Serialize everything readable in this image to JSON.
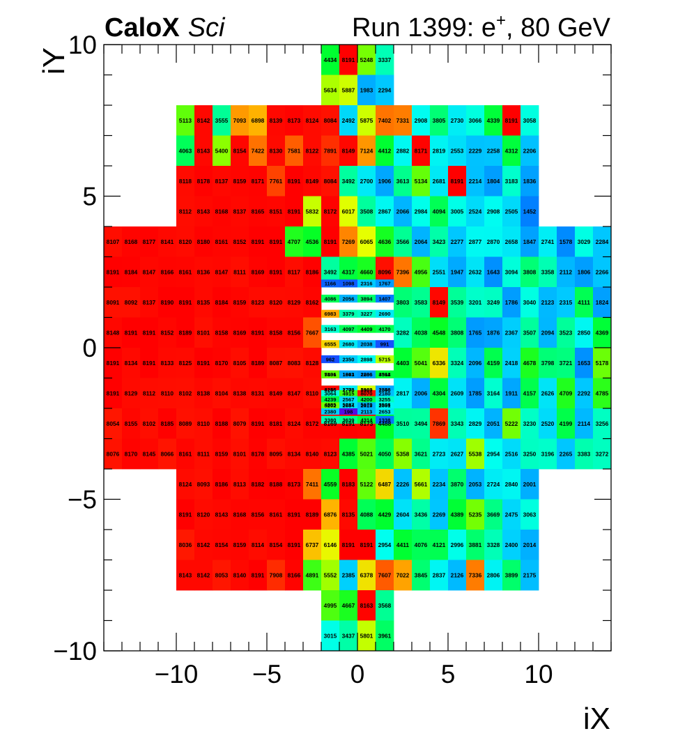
{
  "header": {
    "brand": "CaloX",
    "subbrand": "Sci",
    "run_text": "Run 1399: e",
    "run_sup": "+",
    "run_tail": ", 80 GeV"
  },
  "chart_data": {
    "type": "heatmap",
    "xlabel": "iX",
    "ylabel": "iY",
    "xlim": [
      -14,
      14
    ],
    "ylim": [
      -10,
      10
    ],
    "xticks": [
      -10,
      -5,
      0,
      5,
      10
    ],
    "yticks": [
      -10,
      -5,
      0,
      5,
      10
    ],
    "xtick_labels": [
      "−10",
      "−5",
      "0",
      "5",
      "10"
    ],
    "ytick_labels": [
      "−10",
      "−5",
      "0",
      "5",
      "10"
    ],
    "colormap": "rainbow",
    "zmax": 8191,
    "grid": false,
    "legend": "none",
    "rows": [
      {
        "y": 9.5,
        "x0": -2,
        "values": [
          4434,
          8191,
          5248,
          3337
        ]
      },
      {
        "y": 8.5,
        "x0": -2,
        "values": [
          5634,
          5887,
          1983,
          2294
        ]
      },
      {
        "y": 7.5,
        "x0": -10,
        "values": [
          5113,
          8142,
          3555,
          7093,
          6898,
          8139,
          8173,
          8124,
          8084,
          2492,
          5875,
          7402,
          7331,
          2908,
          3805,
          2730,
          3066,
          4339,
          8191,
          3058
        ]
      },
      {
        "y": 6.5,
        "x0": -10,
        "values": [
          4063,
          8143,
          5400,
          8154,
          7422,
          8130,
          7581,
          8122,
          7891,
          8149,
          7124,
          4412,
          2882,
          8171,
          2819,
          2553,
          2229,
          2258,
          4312,
          2206
        ]
      },
      {
        "y": 5.5,
        "x0": -10,
        "values": [
          8118,
          8178,
          8137,
          8159,
          8171,
          7761,
          8191,
          8149,
          8084,
          3492,
          2700,
          1906,
          3613,
          5134,
          2681,
          8191,
          2214,
          1804,
          3183,
          1836
        ]
      },
      {
        "y": 4.5,
        "x0": -10,
        "values": [
          8112,
          8143,
          8168,
          8137,
          8165,
          8151,
          8191,
          5832,
          8172,
          6017,
          3508,
          2867,
          2066,
          2984,
          4094,
          3005,
          2524,
          2908,
          2505,
          1452
        ]
      },
      {
        "y": 3.5,
        "x0": -14,
        "values": [
          8107,
          8168,
          8177,
          8141,
          8120,
          8180,
          8161,
          8152,
          8191,
          8191,
          4707,
          4536,
          8191,
          7269,
          6065,
          4636,
          3566,
          2064,
          3423,
          2277,
          2877,
          2870,
          2658,
          1847,
          2741,
          1578,
          3029,
          2284
        ]
      },
      {
        "y": 2.5,
        "x0": -14,
        "values": [
          8191,
          8184,
          8147,
          8166,
          8161,
          8136,
          8147,
          8111,
          8169,
          8191,
          8117,
          8186,
          3492,
          4317,
          4660,
          8096,
          7396,
          4956,
          2551,
          1947,
          2632,
          1643,
          3094,
          3808,
          3358,
          2112,
          1806,
          2266
        ]
      },
      {
        "y": 1.5,
        "x0": -14,
        "values": [
          8091,
          8092,
          8137,
          8190,
          8191,
          8135,
          8184,
          8159,
          8123,
          8120,
          8129,
          8162,
          null,
          null,
          null,
          null,
          3803,
          3583,
          8149,
          3539,
          3201,
          3249,
          1786,
          3040,
          2123,
          2315,
          4111,
          1824
        ]
      },
      {
        "y": 0.5,
        "x0": -14,
        "values": [
          8148,
          8191,
          8191,
          8152,
          8189,
          8101,
          8158,
          8169,
          8191,
          8158,
          8156,
          7667,
          null,
          null,
          null,
          null,
          3282,
          4038,
          4548,
          3808,
          1765,
          1876,
          2367,
          3507,
          2094,
          3523,
          2850,
          4369
        ]
      },
      {
        "y": -0.5,
        "x0": -14,
        "values": [
          8191,
          8134,
          8191,
          8133,
          8125,
          8191,
          8170,
          8105,
          8189,
          8087,
          8083,
          8128,
          null,
          null,
          null,
          null,
          4403,
          5041,
          6336,
          3324,
          2096,
          4159,
          2418,
          4678,
          3798,
          3721,
          1653,
          5178
        ]
      },
      {
        "y": -1.5,
        "x0": -14,
        "values": [
          8191,
          8129,
          8112,
          8110,
          8102,
          8138,
          8104,
          8138,
          8131,
          8149,
          8147,
          8110,
          null,
          null,
          null,
          null,
          2817,
          2006,
          4304,
          2609,
          1785,
          3164,
          1911,
          4157,
          2626,
          4709,
          2292,
          4785
        ]
      },
      {
        "y": -2.5,
        "x0": -14,
        "values": [
          8054,
          8155,
          8102,
          8185,
          8089,
          8110,
          8188,
          8079,
          8191,
          8181,
          8124,
          8172,
          8169,
          8191,
          8173,
          4488,
          3510,
          3494,
          7869,
          3343,
          2829,
          2051,
          5222,
          3230,
          2520,
          4199,
          2114,
          3256
        ]
      },
      {
        "y": -3.5,
        "x0": -14,
        "values": [
          8076,
          8170,
          8145,
          8066,
          8161,
          8111,
          8159,
          8101,
          8178,
          8095,
          8134,
          8140,
          8123,
          4385,
          5021,
          4050,
          5358,
          3621,
          2723,
          2627,
          5538,
          2954,
          2516,
          3250,
          3196,
          2265,
          3383,
          3272
        ]
      },
      {
        "y": -4.5,
        "x0": -10,
        "values": [
          8124,
          8093,
          8186,
          8113,
          8182,
          8188,
          8173,
          7411,
          4559,
          8183,
          5122,
          6487,
          2226,
          5661,
          2234,
          3870,
          2053,
          2724,
          2840,
          2001
        ]
      },
      {
        "y": -5.5,
        "x0": -10,
        "values": [
          8191,
          8120,
          8143,
          8168,
          8156,
          8161,
          8191,
          8189,
          6876,
          8135,
          4088,
          4429,
          2604,
          3436,
          2269,
          4389,
          5235,
          3669,
          2475,
          3063
        ]
      },
      {
        "y": -6.5,
        "x0": -10,
        "values": [
          8036,
          8142,
          8154,
          8159,
          8114,
          8154,
          8191,
          6737,
          6146,
          8191,
          8191,
          2954,
          4411,
          4076,
          4121,
          2996,
          3881,
          3328,
          2400,
          2014
        ]
      },
      {
        "y": -7.5,
        "x0": -10,
        "values": [
          8143,
          8142,
          8053,
          8140,
          8191,
          7908,
          8166,
          4891,
          5552,
          2385,
          6378,
          7607,
          7022,
          3845,
          2837,
          2126,
          7336,
          2806,
          3899,
          2175
        ]
      },
      {
        "y": -8.5,
        "x0": -2,
        "values": [
          4995,
          4667,
          8163,
          3568
        ]
      },
      {
        "y": -9.5,
        "x0": -2,
        "values": [
          3015,
          3437,
          5801,
          3961
        ]
      }
    ],
    "fine_rows": [
      {
        "y": 1.75,
        "x0": -2,
        "values": [
          1166,
          1098,
          2316,
          1767
        ]
      },
      {
        "y": 1.25,
        "x0": -2,
        "values": [
          4086,
          2056,
          3894,
          1407
        ]
      },
      {
        "y": 0.75,
        "x0": -2,
        "values": [
          6983,
          3379,
          3227,
          2690
        ]
      },
      {
        "y": 0.25,
        "x0": -2,
        "values": [
          3163,
          4097,
          4409,
          4170
        ]
      },
      {
        "y": -0.25,
        "x0": -2,
        "values": [
          6555,
          2680,
          2038,
          991
        ]
      },
      {
        "y": -0.75,
        "x0": -2,
        "values": [
          962,
          2350,
          2898,
          5715
        ]
      },
      {
        "y": -1.25,
        "x0": -2,
        "values": [
          7836,
          1693,
          2266,
          3512
        ]
      },
      {
        "y": -1.75,
        "x0": -2,
        "values": [
          4246,
          1773,
          2189,
          2346
        ]
      }
    ],
    "fine_rows_lower": [
      {
        "y": -0.25,
        "x0": -2,
        "values": [
          5101,
          1941,
          1806,
          4364
        ]
      },
      {
        "y": -0.75,
        "x0": -2,
        "values": [
          8155,
          2708,
          5963,
          1858
        ]
      },
      {
        "y": -1.25,
        "x0": -2,
        "values": [
          4885,
          5287,
          5170,
          3508
        ]
      },
      {
        "y": -1.75,
        "x0": -2,
        "values": [
          3380,
          3639,
          4314,
          1338
        ]
      }
    ],
    "fine_rows_bottom": [
      {
        "y": -2.0,
        "x0": -2,
        "values": [
          3064,
          4915,
          8070,
          2180
        ]
      },
      {
        "y": -2.2,
        "x0": -2,
        "values": [
          4239,
          2567,
          4200,
          3255
        ]
      },
      {
        "y": -2.4,
        "x0": -2,
        "values": [
          5202,
          2584,
          2013,
          2851
        ]
      },
      {
        "y": -2.6,
        "x0": -2,
        "values": [
          2380,
          198,
          2113,
          2653
        ]
      }
    ]
  }
}
